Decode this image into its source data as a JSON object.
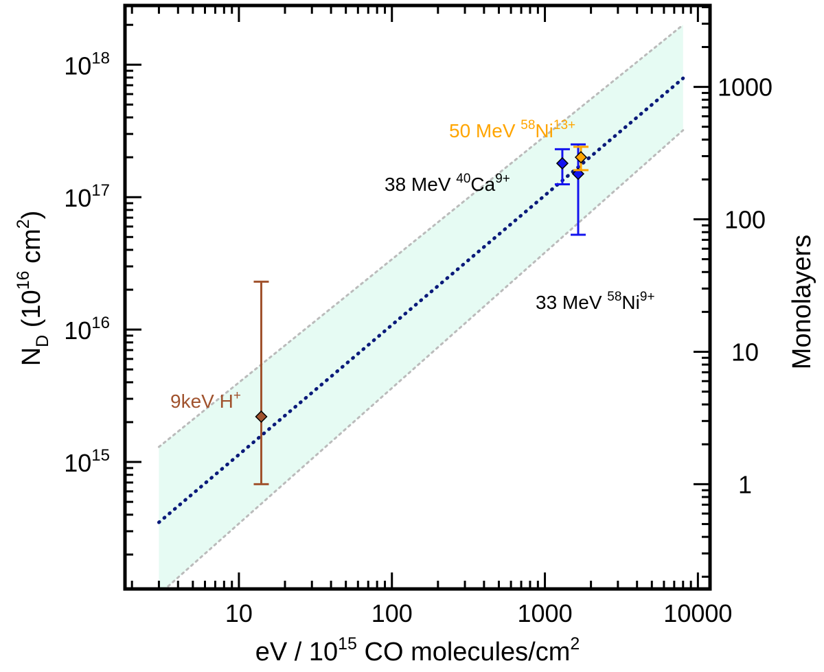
{
  "chart_data": {
    "type": "scatter",
    "x_scale": "log",
    "y_scale": "log",
    "xlim": [
      1.8,
      12000
    ],
    "ylim": [
      110000000000000.0,
      2.8e+18
    ],
    "xlabel": {
      "pre": "eV / 10",
      "sup": "15",
      "post": " CO molecules/cm",
      "sup2": "2"
    },
    "ylabel": {
      "main": "N",
      "sub": "D",
      "mid": " (10",
      "sup": "16",
      "unit": " cm",
      "sup2": "2",
      "close": ")"
    },
    "y2label": "Monolayers",
    "x_ticks": [
      {
        "value": 10,
        "label": "10"
      },
      {
        "value": 100,
        "label": "100"
      },
      {
        "value": 1000,
        "label": "1000"
      },
      {
        "value": 10000,
        "label": "10000"
      }
    ],
    "y_ticks": [
      {
        "value": 1000000000000000.0,
        "base": "10",
        "exp": "15"
      },
      {
        "value": 1e+16,
        "base": "10",
        "exp": "16"
      },
      {
        "value": 1e+17,
        "base": "10",
        "exp": "17"
      },
      {
        "value": 1e+18,
        "base": "10",
        "exp": "18"
      }
    ],
    "y2_ticks": [
      {
        "value": 1,
        "label": "1"
      },
      {
        "value": 10,
        "label": "10"
      },
      {
        "value": 100,
        "label": "100"
      },
      {
        "value": 1000,
        "label": "1000"
      }
    ],
    "y2_conversion": 680000000000000.0,
    "fit_line": {
      "x": [
        3,
        8000
      ],
      "y": [
        350000000000000.0,
        7.9e+17
      ],
      "color": "#0a1a7a"
    },
    "band": {
      "x": [
        3,
        8000
      ],
      "upper": [
        1300000000000000.0,
        2e+18
      ],
      "lower": [
        100000000000000.0,
        3.2e+17
      ],
      "color": "#e6fbf3",
      "edge_color": "#bbbbbb"
    },
    "series": [
      {
        "x": 14,
        "y": 2200000000000000.0,
        "ylow": 680000000000000.0,
        "yhigh": 2.3e+16,
        "color": "#a0522d"
      },
      {
        "x": 1300,
        "y": 1.8e+17,
        "ylow": 1.25e+17,
        "yhigh": 2.3e+17,
        "color": "#1414ee"
      },
      {
        "x": 1650,
        "y": 1.5e+17,
        "ylow": 5.2e+16,
        "yhigh": 2.5e+17,
        "color": "#1414ee"
      },
      {
        "x": 1720,
        "y": 2e+17,
        "ylow": 1.6e+17,
        "yhigh": 2.4e+17,
        "color": "#ffa500"
      }
    ],
    "annotations": [
      {
        "text": "9keV H",
        "sup": "+",
        "color": "#a0522d"
      },
      {
        "text": "38 MeV ",
        "pre": "40",
        "mid": "Ca",
        "sup": "9+",
        "color": "#000000"
      },
      {
        "text": "50 MeV ",
        "pre": "58",
        "mid": "Ni",
        "sup": "13+",
        "color": "#ffa500"
      },
      {
        "text": "33 MeV ",
        "pre": "58",
        "mid": "Ni",
        "sup": "9+",
        "color": "#000000"
      }
    ]
  }
}
